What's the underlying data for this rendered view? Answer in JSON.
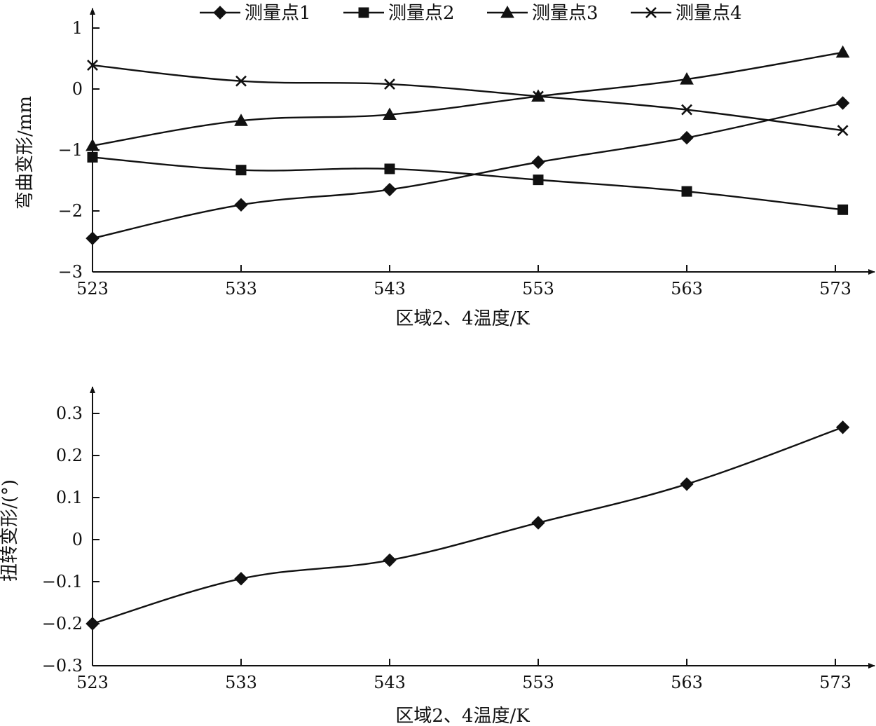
{
  "chart_data": [
    {
      "type": "line",
      "title": "",
      "xlabel": "区域2、4温度/K",
      "ylabel": "弯曲变形/mm",
      "xticks": [
        "523",
        "533",
        "543",
        "553",
        "563",
        "573"
      ],
      "yticks": [
        "1",
        "0",
        "−1",
        "−2",
        "−3"
      ],
      "xlim": [
        523,
        577
      ],
      "ylim": [
        -3,
        1
      ],
      "legend_position": "top",
      "grid": false,
      "x": [
        523,
        533,
        543,
        553,
        563,
        573.5
      ],
      "series": [
        {
          "name": "测量点1",
          "marker": "diamond",
          "values": [
            -2.45,
            -1.9,
            -1.65,
            -1.2,
            -0.8,
            -0.23
          ]
        },
        {
          "name": "测量点2",
          "marker": "square",
          "values": [
            -1.12,
            -1.33,
            -1.31,
            -1.49,
            -1.68,
            -1.98
          ]
        },
        {
          "name": "测量点3",
          "marker": "triangle",
          "values": [
            -0.93,
            -0.52,
            -0.42,
            -0.12,
            0.16,
            0.6
          ]
        },
        {
          "name": "测量点4",
          "marker": "cross",
          "values": [
            0.39,
            0.13,
            0.08,
            -0.12,
            -0.34,
            -0.68
          ]
        }
      ]
    },
    {
      "type": "line",
      "title": "",
      "xlabel": "区域2、4温度/K",
      "ylabel": "扭转变形/(°)",
      "xticks": [
        "523",
        "533",
        "543",
        "553",
        "563",
        "573"
      ],
      "yticks": [
        "0.3",
        "0.2",
        "0.1",
        "0",
        "−0.1",
        "−0.2",
        "−0.3"
      ],
      "xlim": [
        523,
        577
      ],
      "ylim": [
        -0.3,
        0.3
      ],
      "grid": false,
      "x": [
        523,
        533,
        543,
        553,
        563,
        573.5
      ],
      "series": [
        {
          "name": "",
          "marker": "diamond",
          "values": [
            -0.2,
            -0.093,
            -0.049,
            0.04,
            0.132,
            0.267
          ]
        }
      ]
    }
  ]
}
